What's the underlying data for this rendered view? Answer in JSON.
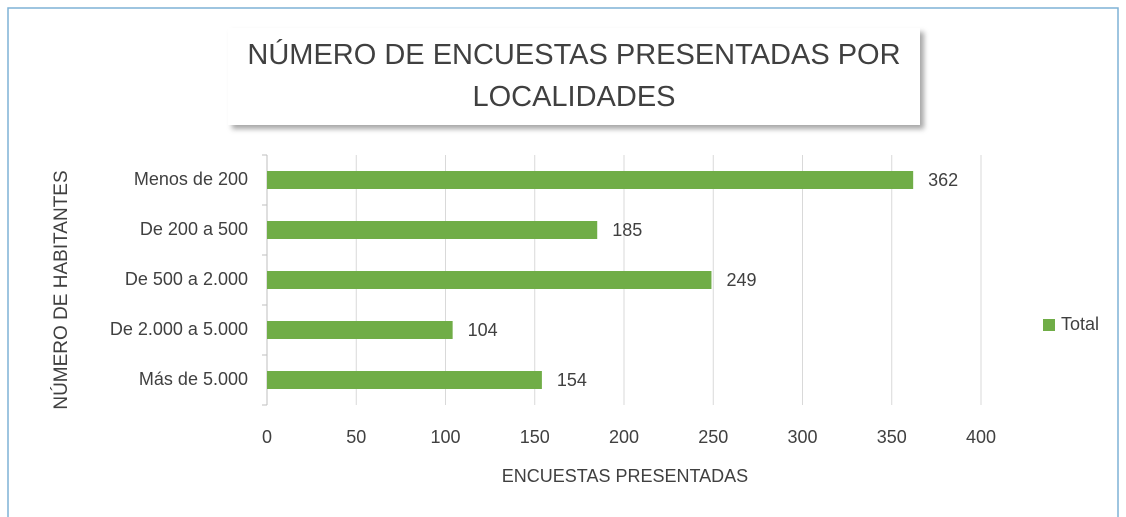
{
  "chart_data": {
    "type": "barh",
    "title": "NÚMERO DE ENCUESTAS PRESENTADAS POR LOCALIDADES",
    "x_label": "ENCUESTAS PRESENTADAS",
    "y_label": "NÚMERO DE HABITANTES",
    "categories": [
      "Menos de 200",
      "De 200 a 500",
      "De 500 a 2.000",
      "De 2.000 a 5.000",
      "Más de 5.000"
    ],
    "series": [
      {
        "name": "Total",
        "color": "#70ad47",
        "values": [
          362,
          185,
          249,
          104,
          154
        ]
      }
    ],
    "xlim": [
      0,
      400
    ],
    "xticks": [
      0,
      50,
      100,
      150,
      200,
      250,
      300,
      350,
      400
    ],
    "grid": true,
    "legend": "right"
  }
}
